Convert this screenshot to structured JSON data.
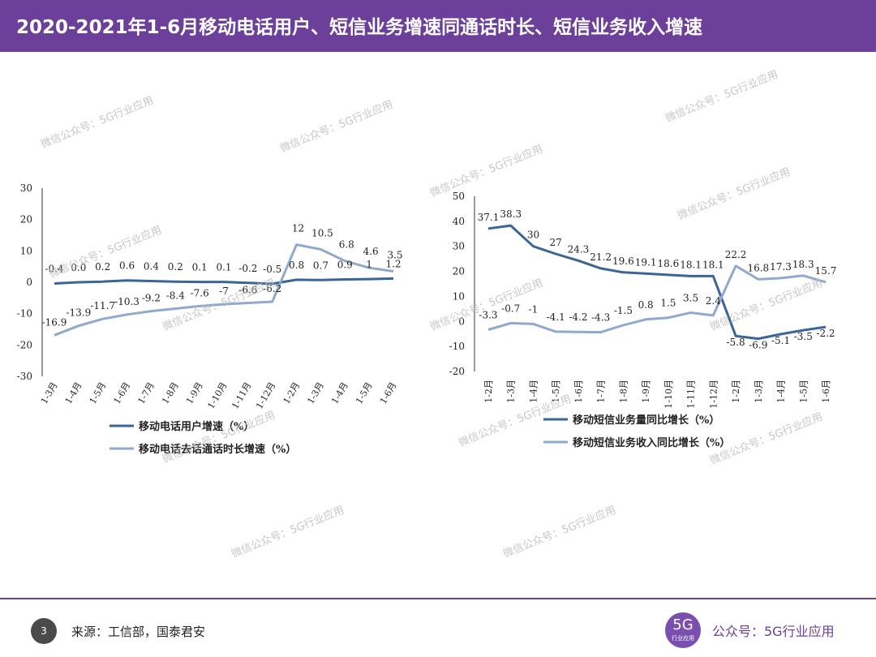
{
  "header": {
    "title": "2020-2021年1-6月移动电话用户、短信业务增速同通话时长、短信业务收入增速"
  },
  "footer": {
    "page_number": "3",
    "source": "来源：工信部，国泰君安",
    "logo_big": "5G",
    "logo_small": "行业应用",
    "account": "公众号：5G行业应用"
  },
  "watermark": "微信公众号：5G行业应用",
  "chart_data": [
    {
      "type": "line",
      "categories": [
        "1-3月",
        "1-4月",
        "1-5月",
        "1-6月",
        "1-7月",
        "1-8月",
        "1-9月",
        "1-10月",
        "1-11月",
        "1-12月",
        "1-2月",
        "1-3月",
        "1-4月",
        "1-5月",
        "1-6月"
      ],
      "ylim": [
        -30,
        30
      ],
      "yticks": [
        30,
        20,
        10,
        0,
        -10,
        -20,
        -30
      ],
      "series": [
        {
          "name": "移动电话用户增速（%）",
          "color": "#3a6596",
          "values": [
            -0.4,
            0.0,
            0.2,
            0.6,
            0.4,
            0.2,
            0.1,
            0.1,
            -0.2,
            -0.5,
            0.8,
            0.7,
            0.9,
            1.0,
            1.2
          ]
        },
        {
          "name": "移动电话去话通话时长增速（%）",
          "color": "#8fa9cf",
          "values": [
            -16.9,
            -13.9,
            -11.7,
            -10.3,
            -9.2,
            -8.4,
            -7.6,
            -7,
            -6.6,
            -6.2,
            12.0,
            10.5,
            6.8,
            4.6,
            3.5
          ]
        }
      ]
    },
    {
      "type": "line",
      "categories": [
        "1-2月",
        "1-3月",
        "1-4月",
        "1-5月",
        "1-6月",
        "1-7月",
        "1-8月",
        "1-9月",
        "1-10月",
        "1-11月",
        "1-12月",
        "1-2月",
        "1-3月",
        "1-4月",
        "1-5月",
        "1-6月"
      ],
      "ylim": [
        -20,
        50
      ],
      "yticks": [
        50,
        40,
        30,
        20,
        10,
        0,
        -10,
        -20
      ],
      "series": [
        {
          "name": "移动短信业务量同比增长（%）",
          "color": "#3a6596",
          "values": [
            37.1,
            38.3,
            30.0,
            27.0,
            24.3,
            21.2,
            19.6,
            19.1,
            18.6,
            18.1,
            18.1,
            -5.8,
            -6.9,
            -5.1,
            -3.5,
            -2.2
          ]
        },
        {
          "name": "移动短信业务收入同比增长（%）",
          "color": "#8fa9cf",
          "values": [
            -3.3,
            -0.7,
            -1,
            -4.1,
            -4.2,
            -4.3,
            -1.5,
            0.8,
            1.5,
            3.5,
            2.4,
            22.2,
            16.8,
            17.3,
            18.3,
            15.7
          ]
        }
      ]
    }
  ]
}
